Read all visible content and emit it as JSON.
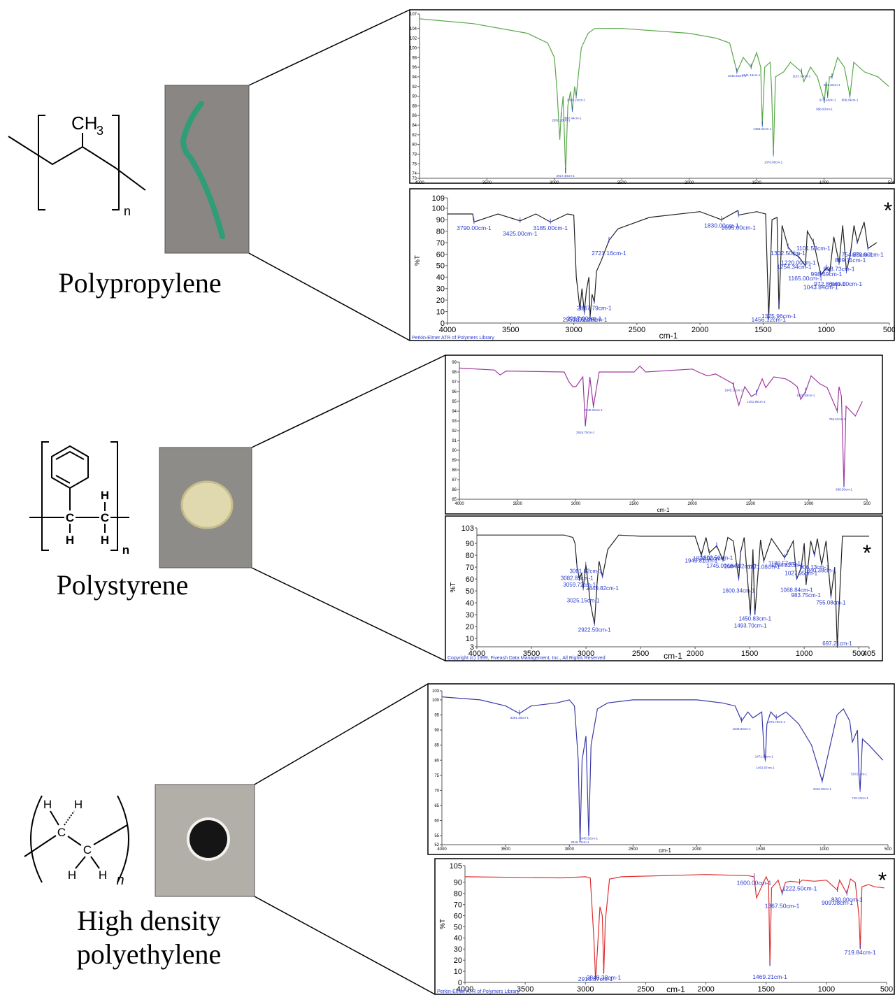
{
  "materials": [
    {
      "labels": [
        "Polypropylene"
      ],
      "structure": [
        "CH",
        "3",
        "n"
      ]
    },
    {
      "labels": [
        "Polystyrene"
      ],
      "structure": [
        "C",
        "C",
        "H",
        "H",
        "H",
        "n"
      ]
    },
    {
      "labels": [
        "High density",
        "polyethylene"
      ],
      "structure": [
        "H",
        "H",
        "C",
        "C",
        "H",
        "H",
        "n"
      ]
    }
  ],
  "chart_data": [
    {
      "type": "line",
      "color": "#5aa84a",
      "label_color": "#2a3bd0",
      "grid": false,
      "xlim": [
        4000,
        500
      ],
      "ylim": [
        73,
        107
      ],
      "xticks": [
        4000,
        3500,
        3000,
        2500,
        2000,
        1500,
        1000,
        500
      ],
      "yticks": [
        73,
        74,
        76,
        78,
        80,
        82,
        84,
        86,
        88,
        90,
        92,
        94,
        96,
        98,
        100,
        102,
        104,
        107
      ],
      "x": [
        4000,
        3600,
        3200,
        3050,
        3000,
        2980,
        2960,
        2950,
        2935,
        2917,
        2900,
        2880,
        2867,
        2850,
        2838,
        2820,
        2800,
        2750,
        2700,
        2500,
        2000,
        1800,
        1700,
        1646,
        1600,
        1541,
        1500,
        1470,
        1458,
        1440,
        1400,
        1390,
        1376,
        1360,
        1300,
        1250,
        1167,
        1150,
        1100,
        1050,
        998,
        985,
        973,
        960,
        941,
        900,
        850,
        808,
        780,
        700,
        600,
        520
      ],
      "values": [
        106,
        105,
        103,
        101,
        98,
        91,
        81,
        86,
        90,
        74,
        88,
        91,
        87,
        92,
        90,
        95,
        100,
        103,
        104,
        104,
        103,
        102,
        101,
        95,
        98,
        96,
        99,
        96,
        84,
        96,
        97,
        92,
        78,
        94,
        95,
        97,
        95,
        93,
        96,
        94,
        89,
        93,
        90,
        94,
        94,
        98,
        96,
        90,
        97,
        95,
        94,
        92
      ],
      "annotations": [
        {
          "x": 2950.18,
          "label": "2950.18cm-1"
        },
        {
          "x": 2917.48,
          "label": "2917.48cm-1"
        },
        {
          "x": 2838.23,
          "label": "2838.23cm-1"
        },
        {
          "x": 2867.44,
          "label": "2867.44cm-1"
        },
        {
          "x": 1646.66,
          "label": "1646.66cm-1"
        },
        {
          "x": 1541.19,
          "label": "1541.19cm-1"
        },
        {
          "x": 1458.04,
          "label": "1458.04cm-1"
        },
        {
          "x": 1376.0,
          "label": "1376.00cm-1"
        },
        {
          "x": 1167.35,
          "label": "1167.35cm-1"
        },
        {
          "x": 998.03,
          "label": "998.03cm-1"
        },
        {
          "x": 973.24,
          "label": "973.24cm-1"
        },
        {
          "x": 941.16,
          "label": "941.16cm-1"
        },
        {
          "x": 808.44,
          "label": "808.44cm-1"
        }
      ]
    },
    {
      "type": "line",
      "color": "#222222",
      "label_color": "#2a3bd0",
      "grid": false,
      "ylabel": "%T",
      "xlabel": "cm-1",
      "footer": "Perkin-Elmer ATR of Polymers Library",
      "note": "*",
      "xlim": [
        4000,
        500
      ],
      "ylim": [
        0,
        109
      ],
      "xticks": [
        4000,
        3500,
        3000,
        2500,
        2000,
        1500,
        1000,
        500
      ],
      "yticks": [
        0,
        10,
        20,
        30,
        40,
        50,
        60,
        70,
        80,
        90,
        100,
        109
      ],
      "x": [
        4000,
        3800,
        3790,
        3600,
        3425,
        3300,
        3185,
        3050,
        3000,
        2980,
        2951,
        2935,
        2917,
        2900,
        2880,
        2871,
        2855,
        2837,
        2820,
        2780,
        2721,
        2650,
        2400,
        2000,
        1830,
        1700,
        1695,
        1550,
        1480,
        1456,
        1430,
        1390,
        1375,
        1350,
        1302,
        1254,
        1220,
        1165,
        1150,
        1100,
        1043,
        998,
        972,
        940,
        898,
        870,
        840,
        809,
        780,
        754,
        700,
        670,
        600
      ],
      "values": [
        95,
        95,
        88,
        95,
        89,
        95,
        88,
        95,
        94,
        40,
        12,
        30,
        9,
        28,
        40,
        5,
        25,
        18,
        45,
        55,
        72,
        82,
        92,
        97,
        90,
        98,
        94,
        97,
        95,
        4,
        90,
        92,
        12,
        85,
        66,
        60,
        58,
        50,
        80,
        70,
        42,
        48,
        45,
        75,
        52,
        85,
        45,
        60,
        85,
        70,
        88,
        65,
        70
      ],
      "annotations": [
        {
          "x": 3790.0,
          "label": "3790.00cm-1"
        },
        {
          "x": 3425.0,
          "label": "3425.00cm-1"
        },
        {
          "x": 3185.0,
          "label": "3185.00cm-1"
        },
        {
          "x": 2721.16,
          "label": "2721.16cm-1"
        },
        {
          "x": 2837.79,
          "label": "2837.79cm-1"
        },
        {
          "x": 2951.26,
          "label": "2951.26cm-1"
        },
        {
          "x": 2917.0,
          "label": "2917.00cm-1"
        },
        {
          "x": 2871.28,
          "label": "2871.28cm-1"
        },
        {
          "x": 1830.0,
          "label": "1830.00cm-1"
        },
        {
          "x": 1695.0,
          "label": "1695.00cm-1"
        },
        {
          "x": 1302.5,
          "label": "1302.50cm-1"
        },
        {
          "x": 1254.34,
          "label": "1254.34cm-1"
        },
        {
          "x": 1220.0,
          "label": "1220.00cm-1"
        },
        {
          "x": 1165.0,
          "label": "1165.00cm-1"
        },
        {
          "x": 1101.58,
          "label": "1101.58cm-1"
        },
        {
          "x": 1375.96,
          "label": "1375.96cm-1"
        },
        {
          "x": 1456.12,
          "label": "1456.12cm-1"
        },
        {
          "x": 1043.84,
          "label": "1043.84cm-1"
        },
        {
          "x": 998.69,
          "label": "998.69cm-1"
        },
        {
          "x": 972.86,
          "label": "972.86cm-1"
        },
        {
          "x": 898.73,
          "label": "898.73cm-1"
        },
        {
          "x": 840.0,
          "label": "840.00cm-1"
        },
        {
          "x": 809.11,
          "label": "809.11cm-1"
        },
        {
          "x": 754.89,
          "label": "754.89cm-1"
        },
        {
          "x": 670.0,
          "label": "670.00cm-1"
        }
      ]
    },
    {
      "type": "line",
      "color": "#a03aa0",
      "label_color": "#2a3bd0",
      "grid": false,
      "xlabel": "cm-1",
      "xlim": [
        4000,
        500
      ],
      "ylim": [
        85,
        99
      ],
      "xticks": [
        4000,
        3500,
        3000,
        2500,
        2000,
        1500,
        1000,
        500
      ],
      "yticks": [
        85,
        86,
        87,
        88,
        89,
        90,
        91,
        92,
        93,
        94,
        95,
        96,
        97,
        98,
        99
      ],
      "x": [
        4000,
        3700,
        3650,
        3600,
        3100,
        3060,
        3026,
        3000,
        2940,
        2918,
        2880,
        2849,
        2800,
        2500,
        2450,
        2400,
        2000,
        1950,
        1870,
        1801,
        1740,
        1650,
        1601,
        1550,
        1493,
        1452,
        1400,
        1370,
        1300,
        1200,
        1154,
        1100,
        1069,
        1028,
        980,
        906,
        842,
        756,
        740,
        720,
        698,
        680,
        600,
        540
      ],
      "values": [
        98.4,
        98.2,
        97.7,
        98.1,
        98.0,
        97.0,
        96.5,
        96.5,
        97.5,
        92.5,
        97.5,
        94.5,
        98,
        98,
        98.6,
        98,
        98.3,
        98.0,
        97.6,
        97.8,
        97.4,
        96.8,
        94.6,
        96.5,
        95.5,
        95.8,
        97.3,
        96.4,
        97.5,
        97.3,
        97.0,
        96.5,
        95.2,
        96.0,
        97.6,
        96.8,
        96.4,
        94.0,
        96.5,
        95.5,
        86.3,
        94.5,
        93.5,
        95.0
      ],
      "annotations": [
        {
          "x": 2849.24,
          "label": "2849.24cm-1"
        },
        {
          "x": 2918.7,
          "label": "2918.70cm-1"
        },
        {
          "x": 1645.11,
          "label": "1645.11cm-1"
        },
        {
          "x": 1451.96,
          "label": "1451.96cm-1"
        },
        {
          "x": 1026.93,
          "label": "1026.93cm-1"
        },
        {
          "x": 756.21,
          "label": "756.21cm-1"
        },
        {
          "x": 698.3,
          "label": "698.30cm-1"
        }
      ]
    },
    {
      "type": "line",
      "color": "#222222",
      "label_color": "#2a3bd0",
      "grid": false,
      "ylabel": "%T",
      "xlabel": "cm-1",
      "footer": "Copyright (c) 1999, Fiveash Data Management, Inc., All Rights Reserved",
      "note": "*",
      "xlim": [
        4000,
        405
      ],
      "ylim": [
        3,
        103
      ],
      "xticks": [
        4000,
        3500,
        3000,
        2500,
        2000,
        1500,
        1000,
        500,
        405
      ],
      "yticks": [
        3,
        10,
        20,
        30,
        40,
        50,
        60,
        70,
        80,
        90,
        103
      ],
      "x": [
        4000,
        3200,
        3120,
        3100,
        3082,
        3060,
        3040,
        3025,
        3001,
        2960,
        2922,
        2900,
        2880,
        2849,
        2800,
        2700,
        2500,
        2000,
        1943,
        1900,
        1870,
        1802,
        1745,
        1700,
        1650,
        1600,
        1584,
        1550,
        1493,
        1470,
        1452,
        1400,
        1371,
        1300,
        1180,
        1154,
        1100,
        1068,
        1027,
        1000,
        983,
        940,
        906,
        880,
        840,
        800,
        755,
        720,
        697,
        650,
        600,
        405
      ],
      "values": [
        97,
        97,
        95,
        90,
        70,
        60,
        65,
        52,
        72,
        40,
        22,
        55,
        75,
        62,
        85,
        97,
        96,
        96,
        80,
        95,
        82,
        88,
        76,
        95,
        92,
        60,
        82,
        95,
        30,
        85,
        30,
        93,
        75,
        94,
        78,
        82,
        92,
        60,
        70,
        90,
        55,
        92,
        80,
        94,
        72,
        92,
        45,
        70,
        3,
        96,
        96,
        96
      ],
      "annotations": [
        {
          "x": 3001.62,
          "label": "3001.62cm-1"
        },
        {
          "x": 3082.85,
          "label": "3082.85cm-1"
        },
        {
          "x": 3059.72,
          "label": "3059.72cm-1"
        },
        {
          "x": 2849.82,
          "label": "2849.82cm-1"
        },
        {
          "x": 2922.5,
          "label": "2922.50cm-1"
        },
        {
          "x": 3025.15,
          "label": "3025.15cm-1"
        },
        {
          "x": 1943.81,
          "label": "1943.81cm-1"
        },
        {
          "x": 1802.5,
          "label": "1802.50cm-1"
        },
        {
          "x": 1870.0,
          "label": "1870.00cm-1"
        },
        {
          "x": 1584.82,
          "label": "1584.82cm-1"
        },
        {
          "x": 1745.0,
          "label": "1745.00cm-1"
        },
        {
          "x": 1600.34,
          "label": "1600.34cm-1"
        },
        {
          "x": 1371.08,
          "label": "1371.08cm-1"
        },
        {
          "x": 1154.82,
          "label": "1154.82cm-1"
        },
        {
          "x": 1450.83,
          "label": "1450.83cm-1"
        },
        {
          "x": 1493.7,
          "label": "1493.70cm-1"
        },
        {
          "x": 1180.57,
          "label": "1180.57cm-1"
        },
        {
          "x": 1068.84,
          "label": "1068.84cm-1"
        },
        {
          "x": 1027.95,
          "label": "1027.95cm-1"
        },
        {
          "x": 906.13,
          "label": "906.13cm-1"
        },
        {
          "x": 840.38,
          "label": "840.38cm-1"
        },
        {
          "x": 983.75,
          "label": "983.75cm-1"
        },
        {
          "x": 755.08,
          "label": "755.08cm-1"
        },
        {
          "x": 697.21,
          "label": "697.21cm-1"
        }
      ]
    },
    {
      "type": "line",
      "color": "#3a3aa8",
      "label_color": "#2a3bd0",
      "grid": false,
      "xlabel": "cm-1",
      "xlim": [
        4000,
        500
      ],
      "ylim": [
        52,
        103
      ],
      "xticks": [
        4000,
        3500,
        3000,
        2500,
        2000,
        1500,
        1000,
        500
      ],
      "yticks": [
        52,
        55,
        60,
        65,
        70,
        75,
        80,
        85,
        90,
        95,
        100,
        103
      ],
      "x": [
        4000,
        3700,
        3500,
        3391,
        3300,
        3100,
        3000,
        2960,
        2930,
        2916,
        2900,
        2870,
        2848,
        2830,
        2780,
        2700,
        2500,
        2000,
        1800,
        1700,
        1648,
        1600,
        1560,
        1490,
        1471,
        1462,
        1450,
        1420,
        1376,
        1300,
        1200,
        1100,
        1050,
        1016,
        980,
        900,
        850,
        800,
        780,
        740,
        729,
        719,
        700,
        650,
        540
      ],
      "values": [
        101,
        100,
        98,
        95.5,
        98,
        99,
        100,
        98,
        80,
        53,
        80,
        88,
        55,
        85,
        97,
        99,
        100,
        100,
        99,
        98,
        93,
        96,
        94,
        96,
        82,
        80,
        92,
        96,
        94,
        96,
        92,
        85,
        78,
        73,
        80,
        95,
        97,
        93,
        86,
        90,
        76,
        70,
        87,
        85,
        80
      ],
      "annotations": [
        {
          "x": 3391.48,
          "label": "3391.48cm-1"
        },
        {
          "x": 2916.73,
          "label": "2916.73cm-1"
        },
        {
          "x": 2848.32,
          "label": "2848.32cm-1"
        },
        {
          "x": 1648.83,
          "label": "1648.83cm-1"
        },
        {
          "x": 1376.79,
          "label": "1376.79cm-1"
        },
        {
          "x": 1462.97,
          "label": "1462.97cm-1"
        },
        {
          "x": 1471.88,
          "label": "1471.88cm-1"
        },
        {
          "x": 1016.3,
          "label": "1016.30cm-1"
        },
        {
          "x": 729.61,
          "label": "729.61cm-1"
        },
        {
          "x": 719.13,
          "label": "719.13cm-1"
        }
      ]
    },
    {
      "type": "line",
      "color": "#e03030",
      "label_color": "#2a3bd0",
      "grid": false,
      "ylabel": "%T",
      "xlabel": "cm-1",
      "footer": "Perkin-Elmer ATR of Polymers Library",
      "note": "*",
      "xlim": [
        4000,
        500
      ],
      "ylim": [
        0,
        105
      ],
      "xticks": [
        4000,
        3500,
        3000,
        2500,
        2000,
        1500,
        1000,
        500
      ],
      "yticks": [
        0,
        10,
        20,
        30,
        40,
        50,
        60,
        70,
        80,
        90,
        105
      ],
      "x": [
        4000,
        3200,
        3000,
        2960,
        2930,
        2916,
        2900,
        2880,
        2860,
        2848,
        2835,
        2800,
        2700,
        2000,
        1650,
        1600,
        1580,
        1500,
        1480,
        1469,
        1455,
        1400,
        1367,
        1340,
        1300,
        1222,
        1200,
        1100,
        1000,
        909,
        890,
        830,
        800,
        760,
        730,
        719,
        705,
        650,
        600,
        520
      ],
      "values": [
        95,
        94,
        95,
        94,
        40,
        2,
        30,
        68,
        60,
        8,
        55,
        93,
        95,
        97,
        96,
        95,
        76,
        95,
        90,
        15,
        85,
        92,
        80,
        90,
        91,
        90,
        92,
        91,
        92,
        83,
        92,
        80,
        93,
        90,
        60,
        30,
        86,
        88,
        86,
        85
      ],
      "annotations": [
        {
          "x": 2848.38,
          "label": "2848.38cm-1"
        },
        {
          "x": 2916.87,
          "label": "2916.87cm-1"
        },
        {
          "x": 1600.0,
          "label": "1600.00cm-1"
        },
        {
          "x": 1367.5,
          "label": "1367.50cm-1"
        },
        {
          "x": 1222.5,
          "label": "1222.50cm-1"
        },
        {
          "x": 909.08,
          "label": "909.08cm-1"
        },
        {
          "x": 830.0,
          "label": "830.00cm-1"
        },
        {
          "x": 1469.21,
          "label": "1469.21cm-1"
        },
        {
          "x": 719.84,
          "label": "719.84cm-1"
        }
      ]
    }
  ]
}
